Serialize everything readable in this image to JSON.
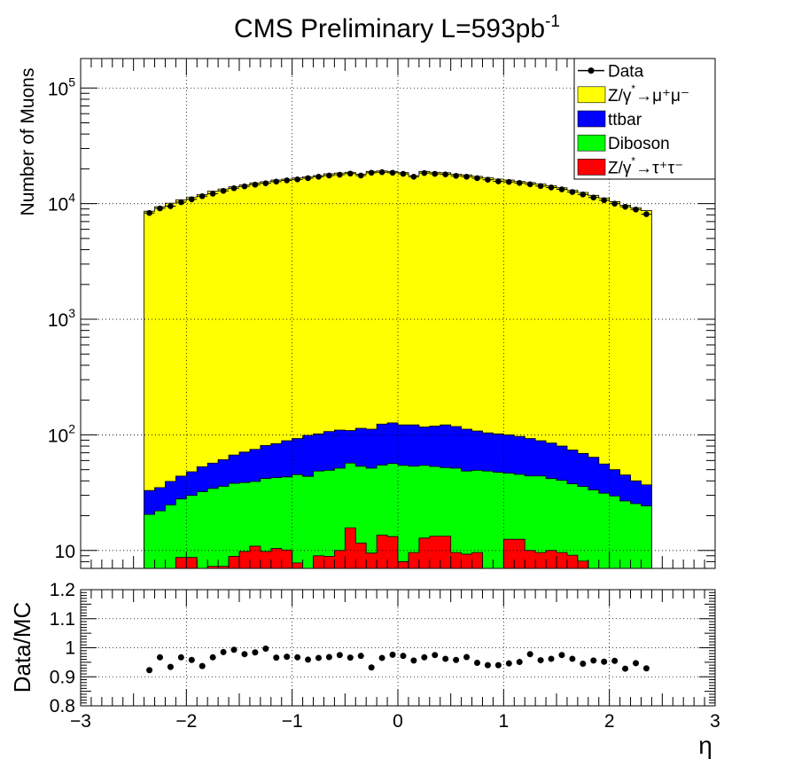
{
  "title": "CMS Preliminary L=593pb",
  "title_sup": "-1",
  "colors": {
    "zmumu": "#ffff00",
    "ttbar": "#0000ff",
    "diboson": "#00ff00",
    "ztautau": "#ff0000",
    "data": "#000000"
  },
  "chart_data": [
    {
      "type": "area",
      "ylabel": "Number of Muons",
      "yscale": "log",
      "xlim": [
        -3,
        3
      ],
      "ylim": [
        7,
        180000
      ],
      "grid": true,
      "legend_position": "top-right",
      "y_tick_labels": [
        {
          "v": 10,
          "base": "10",
          "exp": ""
        },
        {
          "v": 100,
          "base": "10",
          "exp": "2"
        },
        {
          "v": 1000,
          "base": "10",
          "exp": "3"
        },
        {
          "v": 10000,
          "base": "10",
          "exp": "4"
        },
        {
          "v": 100000,
          "base": "10",
          "exp": "5"
        }
      ],
      "legend": [
        {
          "id": "data",
          "label": "Data",
          "kind": "marker"
        },
        {
          "id": "zmumu",
          "label": "Z/γ",
          "super": "*",
          "tail": "→μ⁺μ⁻",
          "kind": "fill"
        },
        {
          "id": "ttbar",
          "label": "ttbar",
          "kind": "fill"
        },
        {
          "id": "diboson",
          "label": "Diboson",
          "kind": "fill"
        },
        {
          "id": "ztautau",
          "label": "Z/γ",
          "super": "*",
          "tail": "→τ⁺τ⁻",
          "kind": "fill"
        }
      ],
      "bin_edges_range": [
        -2.4,
        2.4
      ],
      "n_bins": 48,
      "stack_cumulative": {
        "ztautau": [
          0,
          0,
          0,
          8.7,
          8.7,
          0,
          7.3,
          7.3,
          8.9,
          9.8,
          10.9,
          9.8,
          10.4,
          10.1,
          7.8,
          0,
          9.0,
          8.9,
          10.0,
          15.7,
          11.6,
          9.5,
          13.6,
          13.2,
          8.0,
          9.6,
          12.8,
          13.3,
          13.3,
          9.6,
          9.3,
          9.6,
          0,
          0,
          12.5,
          12.5,
          10.0,
          9.6,
          10.0,
          9.6,
          9.1,
          8.1,
          0,
          0,
          0,
          0,
          0,
          0
        ],
        "diboson": [
          20.5,
          22,
          24.8,
          27.9,
          29.9,
          32.3,
          34.4,
          35.9,
          38.1,
          38.7,
          39.5,
          42.0,
          42.7,
          43.3,
          45.3,
          43.8,
          48.6,
          49.4,
          51.5,
          57.0,
          53.5,
          51.5,
          54.8,
          56.5,
          54.4,
          53.6,
          54.4,
          53.2,
          52.1,
          51.5,
          48.6,
          49.4,
          48.6,
          47.5,
          46.6,
          45.5,
          44.1,
          44.1,
          41.9,
          40.4,
          37.7,
          35.8,
          33.4,
          31.3,
          29.6,
          26.8,
          25.4,
          24.3
        ],
        "ttbar": [
          33,
          35,
          39.6,
          44,
          48,
          53,
          57,
          61,
          67,
          71,
          75,
          81,
          84,
          89,
          93,
          99,
          102,
          107,
          110,
          109,
          114,
          112,
          124,
          127,
          122,
          122,
          117,
          119,
          122,
          118,
          112,
          108,
          104,
          102,
          100,
          97,
          93,
          89,
          85,
          80,
          74,
          69,
          64,
          56,
          50,
          45,
          40,
          37
        ],
        "zmumu": [
          8600,
          9400,
          10100,
          10800,
          11400,
          12000,
          12800,
          13400,
          14000,
          14500,
          15100,
          15500,
          16000,
          16300,
          16700,
          17100,
          17500,
          18100,
          18400,
          18700,
          18000,
          19000,
          19200,
          19000,
          18600,
          17500,
          19000,
          18700,
          18500,
          18000,
          17700,
          17200,
          16800,
          16300,
          16000,
          15600,
          15200,
          14800,
          14300,
          13700,
          13100,
          12500,
          11800,
          11200,
          10400,
          9700,
          9200,
          8700
        ]
      },
      "data_points": [
        8300,
        9100,
        9500,
        10300,
        10900,
        11600,
        12200,
        12900,
        13600,
        14100,
        14600,
        15000,
        15500,
        15900,
        16200,
        16600,
        17100,
        17500,
        17800,
        18200,
        17500,
        18500,
        18700,
        18500,
        18100,
        17100,
        18400,
        18100,
        17900,
        17400,
        17100,
        16600,
        16100,
        15600,
        15400,
        15100,
        14700,
        14200,
        13800,
        13300,
        12600,
        12000,
        11300,
        10700,
        10000,
        9400,
        8900,
        8100
      ]
    },
    {
      "type": "scatter",
      "xlabel": "η",
      "ylabel": "Data/MC",
      "xlim": [
        -3,
        3
      ],
      "ylim": [
        0.8,
        1.2
      ],
      "grid": true,
      "x_ticks": [
        -3,
        -2,
        -1,
        0,
        1,
        2,
        3
      ],
      "x_tick_labels": [
        "−3",
        "−2",
        "−1",
        "0",
        "1",
        "2",
        "3"
      ],
      "y_ticks": [
        0.8,
        0.9,
        1.0,
        1.1,
        1.2
      ],
      "y_tick_labels": [
        "0.8",
        "0.9",
        "1",
        "1.1",
        "1.2"
      ],
      "ratio": [
        0.923,
        0.967,
        0.934,
        0.967,
        0.958,
        0.937,
        0.967,
        0.985,
        0.993,
        0.978,
        0.984,
        0.997,
        0.966,
        0.969,
        0.967,
        0.959,
        0.965,
        0.968,
        0.975,
        0.966,
        0.972,
        0.932,
        0.965,
        0.976,
        0.972,
        0.956,
        0.967,
        0.975,
        0.962,
        0.958,
        0.968,
        0.948,
        0.94,
        0.94,
        0.946,
        0.951,
        0.978,
        0.957,
        0.962,
        0.975,
        0.962,
        0.945,
        0.956,
        0.952,
        0.955,
        0.928,
        0.947,
        0.929
      ]
    }
  ]
}
